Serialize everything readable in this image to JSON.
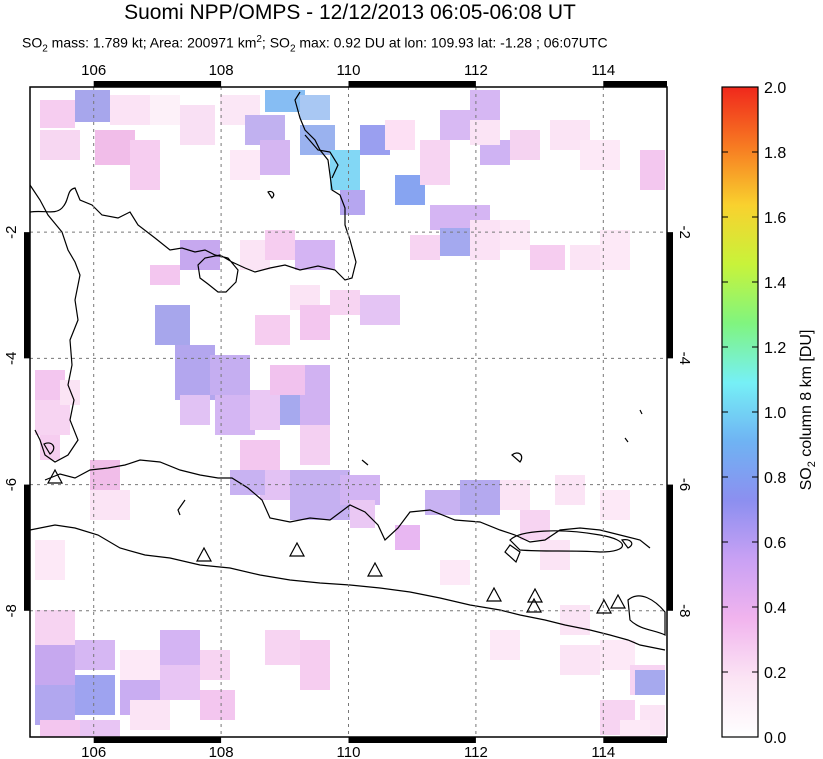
{
  "header": {
    "title": "Suomi NPP/OMPS - 12/12/2013 06:05-06:08 UT",
    "subtitle_parts": {
      "so2_mass_label": "SO",
      "so2_mass_rest": " mass: 1.789 kt; Area: 200971 km",
      "area_sup": "2",
      "so2_max_rest": "; SO",
      "tail": " max: 0.92 DU at lon: 109.93 lat: -1.28 ; 06:07UTC",
      "sub2": "2"
    }
  },
  "map": {
    "lon_ticks": [
      "106",
      "108",
      "110",
      "112",
      "114"
    ],
    "lat_ticks": [
      "-2",
      "-4",
      "-6",
      "-8"
    ],
    "lon_values": [
      106,
      108,
      110,
      112,
      114
    ],
    "lat_values": [
      -2,
      -4,
      -6,
      -8
    ],
    "lon_range": [
      105,
      115
    ],
    "lat_range": [
      -10,
      0.3
    ],
    "volcano_count": 9
  },
  "colorbar": {
    "label_prefix": "SO",
    "label_sub": "2",
    "label_suffix": " column 8 km [DU]",
    "ticks": [
      "0.0",
      "0.2",
      "0.4",
      "0.6",
      "0.8",
      "1.0",
      "1.2",
      "1.4",
      "1.6",
      "1.8",
      "2.0"
    ],
    "range": [
      0,
      2
    ],
    "colors": [
      "#ffffff",
      "#fbe4f4",
      "#f1b4ee",
      "#c9a1f4",
      "#8c8ff0",
      "#6fb3f3",
      "#76f0f6",
      "#80f47f",
      "#c8f33a",
      "#f9d12e",
      "#f77a22",
      "#f0281c"
    ]
  }
}
